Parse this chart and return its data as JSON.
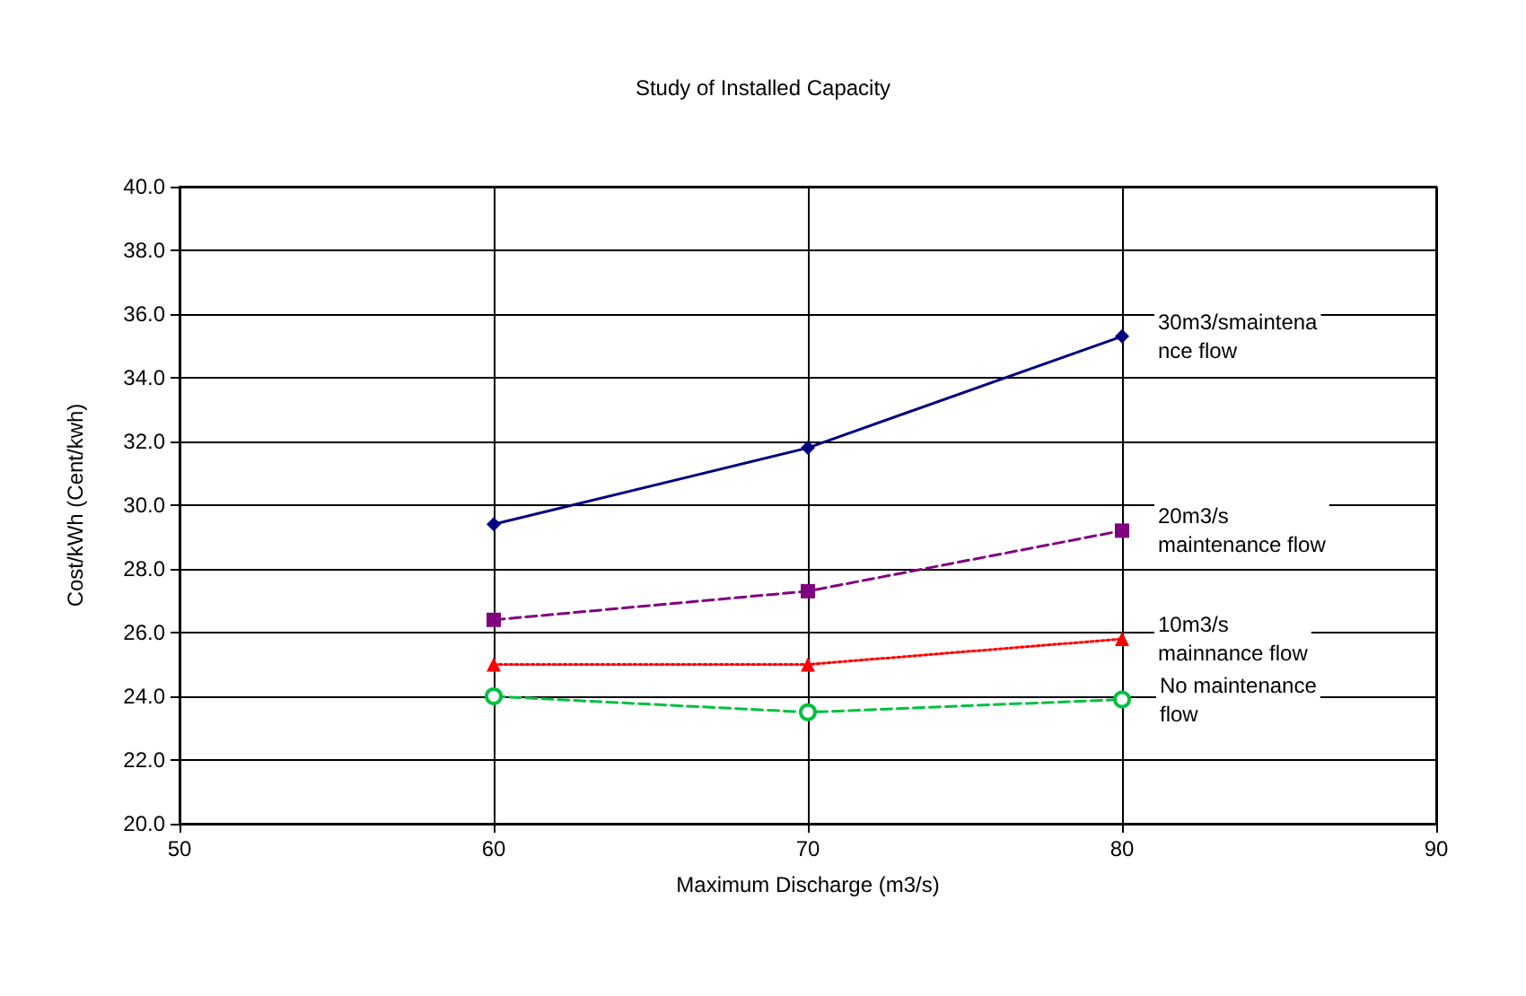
{
  "chart_data": {
    "type": "line",
    "title": "Study of Installed Capacity",
    "xlabel": "Maximum Discharge (m3/s)",
    "ylabel": "Cost/kWh (Cent/kwh)",
    "x": [
      60,
      70,
      80
    ],
    "series": [
      {
        "name": "30m3/smaintena\nnce flow",
        "color": "#000080",
        "marker": "diamond",
        "line_style": "solid",
        "values": [
          29.4,
          31.8,
          35.3
        ]
      },
      {
        "name": "20m3/s\nmaintenance flow",
        "color": "#800080",
        "marker": "square",
        "line_style": "dashed",
        "values": [
          26.4,
          27.3,
          29.2
        ]
      },
      {
        "name": "10m3/s\nmainnance flow",
        "color": "#ff0000",
        "marker": "triangle",
        "line_style": "dotted",
        "values": [
          25.0,
          25.0,
          25.8
        ]
      },
      {
        "name": "No maintenance\nflow",
        "color": "#00c040",
        "marker": "circle",
        "line_style": "dashed",
        "values": [
          24.0,
          23.5,
          23.9
        ]
      }
    ],
    "xlim": [
      50,
      90
    ],
    "xticks": [
      50,
      60,
      70,
      80,
      90
    ],
    "ylim": [
      20,
      40
    ],
    "yticks": [
      {
        "value": 20,
        "label": "20.0"
      },
      {
        "value": 22,
        "label": "22.0"
      },
      {
        "value": 24,
        "label": "24.0"
      },
      {
        "value": 26,
        "label": "26.0"
      },
      {
        "value": 28,
        "label": "28.0"
      },
      {
        "value": 30,
        "label": "30.0"
      },
      {
        "value": 32,
        "label": "32.0"
      },
      {
        "value": 34,
        "label": "34.0"
      },
      {
        "value": 36,
        "label": "36.0"
      },
      {
        "value": 38,
        "label": "38.0"
      },
      {
        "value": 40,
        "label": "40.0"
      }
    ],
    "grid": true,
    "legend": false
  }
}
